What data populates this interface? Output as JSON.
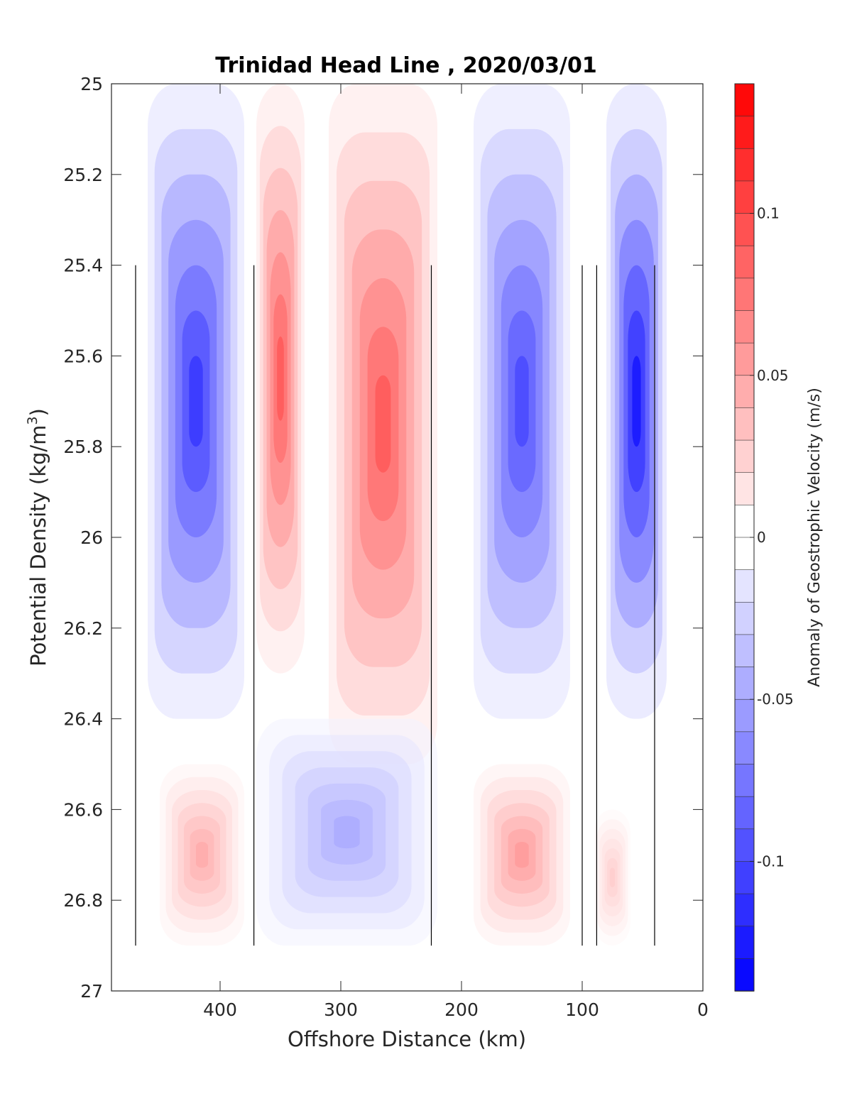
{
  "chart_data": {
    "type": "heatmap",
    "title": "Trinidad Head Line , 2020/03/01",
    "xlabel": "Offshore Distance (km)",
    "ylabel": "Potential Density (kg/m",
    "ylabel_sup": "3",
    "ylabel_close": ")",
    "xlim": [
      490,
      0
    ],
    "x_reversed": true,
    "ylim": [
      25,
      27
    ],
    "y_reversed": true,
    "x_ticks": [
      400,
      300,
      200,
      100,
      0
    ],
    "x_tick_labels": [
      "400",
      "300",
      "200",
      "100",
      "0"
    ],
    "y_ticks": [
      25,
      25.2,
      25.4,
      25.6,
      25.8,
      26,
      26.2,
      26.4,
      26.6,
      26.8,
      27
    ],
    "y_tick_labels": [
      "25",
      "25.2",
      "25.4",
      "25.6",
      "25.8",
      "26",
      "26.2",
      "26.4",
      "26.6",
      "26.8",
      "27"
    ],
    "colorbar": {
      "label": "Anomaly of Geostrophic Velocity (m/s)",
      "range": [
        -0.14,
        0.14
      ],
      "step": 0.01,
      "ticks": [
        0.1,
        0.05,
        0,
        -0.05,
        -0.1
      ],
      "tick_labels": [
        "0.1",
        "0.05",
        "0",
        "-0.05",
        "-0.1"
      ],
      "colormap": "blue-white-red"
    },
    "velocity_cores": [
      {
        "sign": "negative",
        "x_range": [
          460,
          380
        ],
        "y_range": [
          25,
          26.4
        ],
        "peak": -0.12
      },
      {
        "sign": "positive",
        "x_range": [
          370,
          330
        ],
        "y_range": [
          25,
          26.3
        ],
        "peak": 0.1
      },
      {
        "sign": "positive",
        "x_range": [
          310,
          220
        ],
        "y_range": [
          25,
          26.5
        ],
        "peak": 0.1
      },
      {
        "sign": "negative",
        "x_range": [
          190,
          110
        ],
        "y_range": [
          25,
          26.4
        ],
        "peak": -0.11
      },
      {
        "sign": "negative",
        "x_range": [
          80,
          30
        ],
        "y_range": [
          25,
          26.4
        ],
        "peak": -0.14
      },
      {
        "sign": "positive",
        "x_range": [
          450,
          380
        ],
        "y_range": [
          26.5,
          26.9
        ],
        "peak": 0.05
      },
      {
        "sign": "negative",
        "x_range": [
          370,
          220
        ],
        "y_range": [
          26.4,
          26.9
        ],
        "peak": -0.05
      },
      {
        "sign": "positive",
        "x_range": [
          190,
          110
        ],
        "y_range": [
          26.5,
          26.9
        ],
        "peak": 0.06
      },
      {
        "sign": "positive",
        "x_range": [
          90,
          60
        ],
        "y_range": [
          26.6,
          26.9
        ],
        "peak": 0.03
      }
    ],
    "zero_contour": "black line",
    "colors": {
      "negative": "#0000ff",
      "positive": "#ff0000",
      "zero": "#ffffff"
    }
  }
}
